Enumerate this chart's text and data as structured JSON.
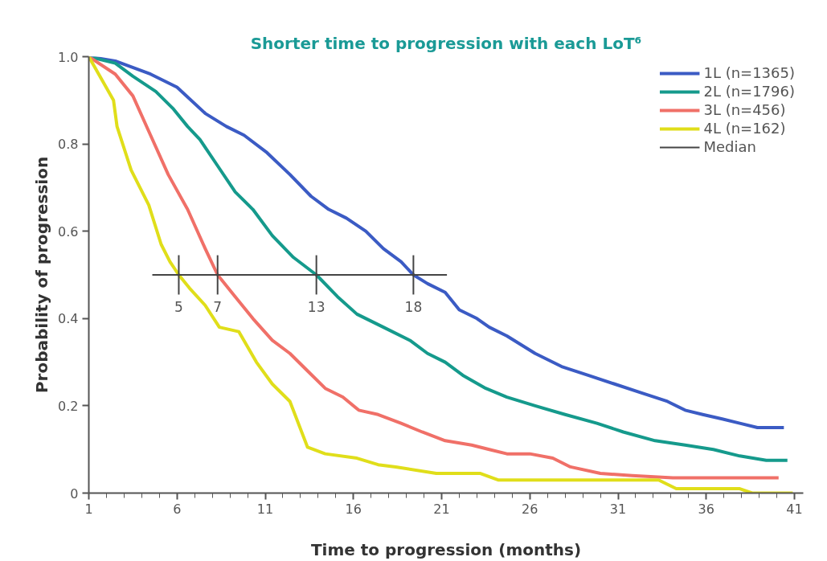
{
  "chart_data": {
    "type": "line",
    "title": "Shorter time to progression with each LoT⁶",
    "xlabel": "Time to progression (months)",
    "ylabel": "Probability of progression",
    "xlim": [
      1,
      41.5
    ],
    "ylim": [
      0,
      1.0
    ],
    "xticks": [
      1,
      {
        "value": 2,
        "label": null
      },
      {
        "value": 3,
        "label": null
      },
      {
        "value": 4,
        "label": null
      },
      {
        "value": 5,
        "label": null
      },
      6,
      {
        "value": 7,
        "label": null
      },
      {
        "value": 8,
        "label": null
      },
      {
        "value": 9,
        "label": null
      },
      {
        "value": 10,
        "label": null
      },
      11,
      {
        "value": 12,
        "label": null
      },
      {
        "value": 13,
        "label": null
      },
      {
        "value": 14,
        "label": null
      },
      {
        "value": 15,
        "label": null
      },
      16,
      {
        "value": 17,
        "label": null
      },
      {
        "value": 18,
        "label": null
      },
      {
        "value": 19,
        "label": null
      },
      {
        "value": 20,
        "label": null
      },
      21,
      {
        "value": 22,
        "label": null
      },
      {
        "value": 23,
        "label": null
      },
      {
        "value": 24,
        "label": null
      },
      {
        "value": 25,
        "label": null
      },
      26,
      {
        "value": 27,
        "label": null
      },
      {
        "value": 28,
        "label": null
      },
      {
        "value": 29,
        "label": null
      },
      {
        "value": 30,
        "label": null
      },
      31,
      {
        "value": 32,
        "label": null
      },
      {
        "value": 33,
        "label": null
      },
      {
        "value": 34,
        "label": null
      },
      {
        "value": 35,
        "label": null
      },
      36,
      {
        "value": 37,
        "label": null
      },
      {
        "value": 38,
        "label": null
      },
      {
        "value": 39,
        "label": null
      },
      {
        "value": 40,
        "label": null
      },
      41
    ],
    "yticks": [
      0,
      0.2,
      0.4,
      0.6,
      0.8,
      {
        "value": 1.0,
        "label": "1.0"
      }
    ],
    "grid": false,
    "legend": "top right",
    "marker": "none",
    "line_style": "solid",
    "series": [
      {
        "name": "1L (n=1365)",
        "color": "#3b5bc4",
        "x": [
          1,
          2.5,
          4.5,
          6,
          7.6,
          8.8,
          9.8,
          11.1,
          12.4,
          13.6,
          14.6,
          15.6,
          16.7,
          17.7,
          18.7,
          19.4,
          20.2,
          21.2,
          22,
          23,
          23.7,
          24.7,
          26.3,
          27.8,
          29.3,
          30.8,
          32.3,
          33.8,
          34.8,
          35.8,
          36.9,
          37.9,
          38.9,
          40.4
        ],
        "values": [
          1.0,
          0.99,
          0.96,
          0.93,
          0.87,
          0.84,
          0.82,
          0.78,
          0.73,
          0.68,
          0.65,
          0.63,
          0.6,
          0.56,
          0.53,
          0.5,
          0.48,
          0.46,
          0.42,
          0.4,
          0.38,
          0.36,
          0.32,
          0.29,
          0.27,
          0.25,
          0.23,
          0.21,
          0.19,
          0.18,
          0.17,
          0.16,
          0.15,
          0.15
        ]
      },
      {
        "name": "2L (n=1796)",
        "color": "#159a8c",
        "x": [
          1,
          2.5,
          3.5,
          4.8,
          5.8,
          6.6,
          7.3,
          8.3,
          9.3,
          10.3,
          11.4,
          12.6,
          13.9,
          15.1,
          16.2,
          17.7,
          19.2,
          20.2,
          21.2,
          22.2,
          23.5,
          24.7,
          26.3,
          28,
          29.8,
          31.3,
          33.1,
          34.8,
          36.4,
          37.9,
          39.4,
          40.6
        ],
        "values": [
          1.0,
          0.985,
          0.955,
          0.92,
          0.88,
          0.84,
          0.81,
          0.75,
          0.69,
          0.65,
          0.59,
          0.54,
          0.5,
          0.45,
          0.41,
          0.38,
          0.35,
          0.32,
          0.3,
          0.27,
          0.24,
          0.22,
          0.2,
          0.18,
          0.16,
          0.14,
          0.12,
          0.11,
          0.1,
          0.085,
          0.075,
          0.075
        ]
      },
      {
        "name": "3L (n=456)",
        "color": "#f07068",
        "x": [
          1,
          2.5,
          3.5,
          4.5,
          5.5,
          6.6,
          7.6,
          8.3,
          9.3,
          10.3,
          11.4,
          12.4,
          13.4,
          14.4,
          15.4,
          16.3,
          17.4,
          18.7,
          19.9,
          21.2,
          22.7,
          23.7,
          24.7,
          26,
          27.3,
          28.3,
          30,
          31.8,
          34.1,
          36.4,
          40.1
        ],
        "values": [
          1.0,
          0.96,
          0.91,
          0.82,
          0.73,
          0.65,
          0.56,
          0.5,
          0.45,
          0.4,
          0.35,
          0.32,
          0.28,
          0.24,
          0.22,
          0.19,
          0.18,
          0.16,
          0.14,
          0.12,
          0.11,
          0.1,
          0.09,
          0.09,
          0.08,
          0.06,
          0.045,
          0.04,
          0.035,
          0.035,
          0.035
        ]
      },
      {
        "name": "4L (n=162)",
        "color": "#e0de1a",
        "x": [
          1,
          2.4,
          2.6,
          3.4,
          4.4,
          5.1,
          5.6,
          6.1,
          6.7,
          7.6,
          8.4,
          9.5,
          10.5,
          11.4,
          12.4,
          13.4,
          14.4,
          16.2,
          17.4,
          18.4,
          20.7,
          23.2,
          24.2,
          33.3,
          34.3,
          37.9,
          38.6,
          40.9
        ],
        "values": [
          1.0,
          0.9,
          0.84,
          0.74,
          0.66,
          0.57,
          0.53,
          0.5,
          0.47,
          0.43,
          0.38,
          0.37,
          0.3,
          0.25,
          0.21,
          0.105,
          0.09,
          0.08,
          0.065,
          0.06,
          0.045,
          0.045,
          0.03,
          0.03,
          0.01,
          0.01,
          0,
          0
        ]
      },
      {
        "name": "Median",
        "color": "#444444",
        "x": [
          4.6,
          21.3
        ],
        "values": [
          0.5,
          0.5
        ]
      }
    ],
    "annotations": [
      {
        "text": "5",
        "x": 6.1,
        "y": 0.5
      },
      {
        "text": "7",
        "x": 8.3,
        "y": 0.5
      },
      {
        "text": "13",
        "x": 13.9,
        "y": 0.5
      },
      {
        "text": "18",
        "x": 19.4,
        "y": 0.5
      }
    ]
  }
}
